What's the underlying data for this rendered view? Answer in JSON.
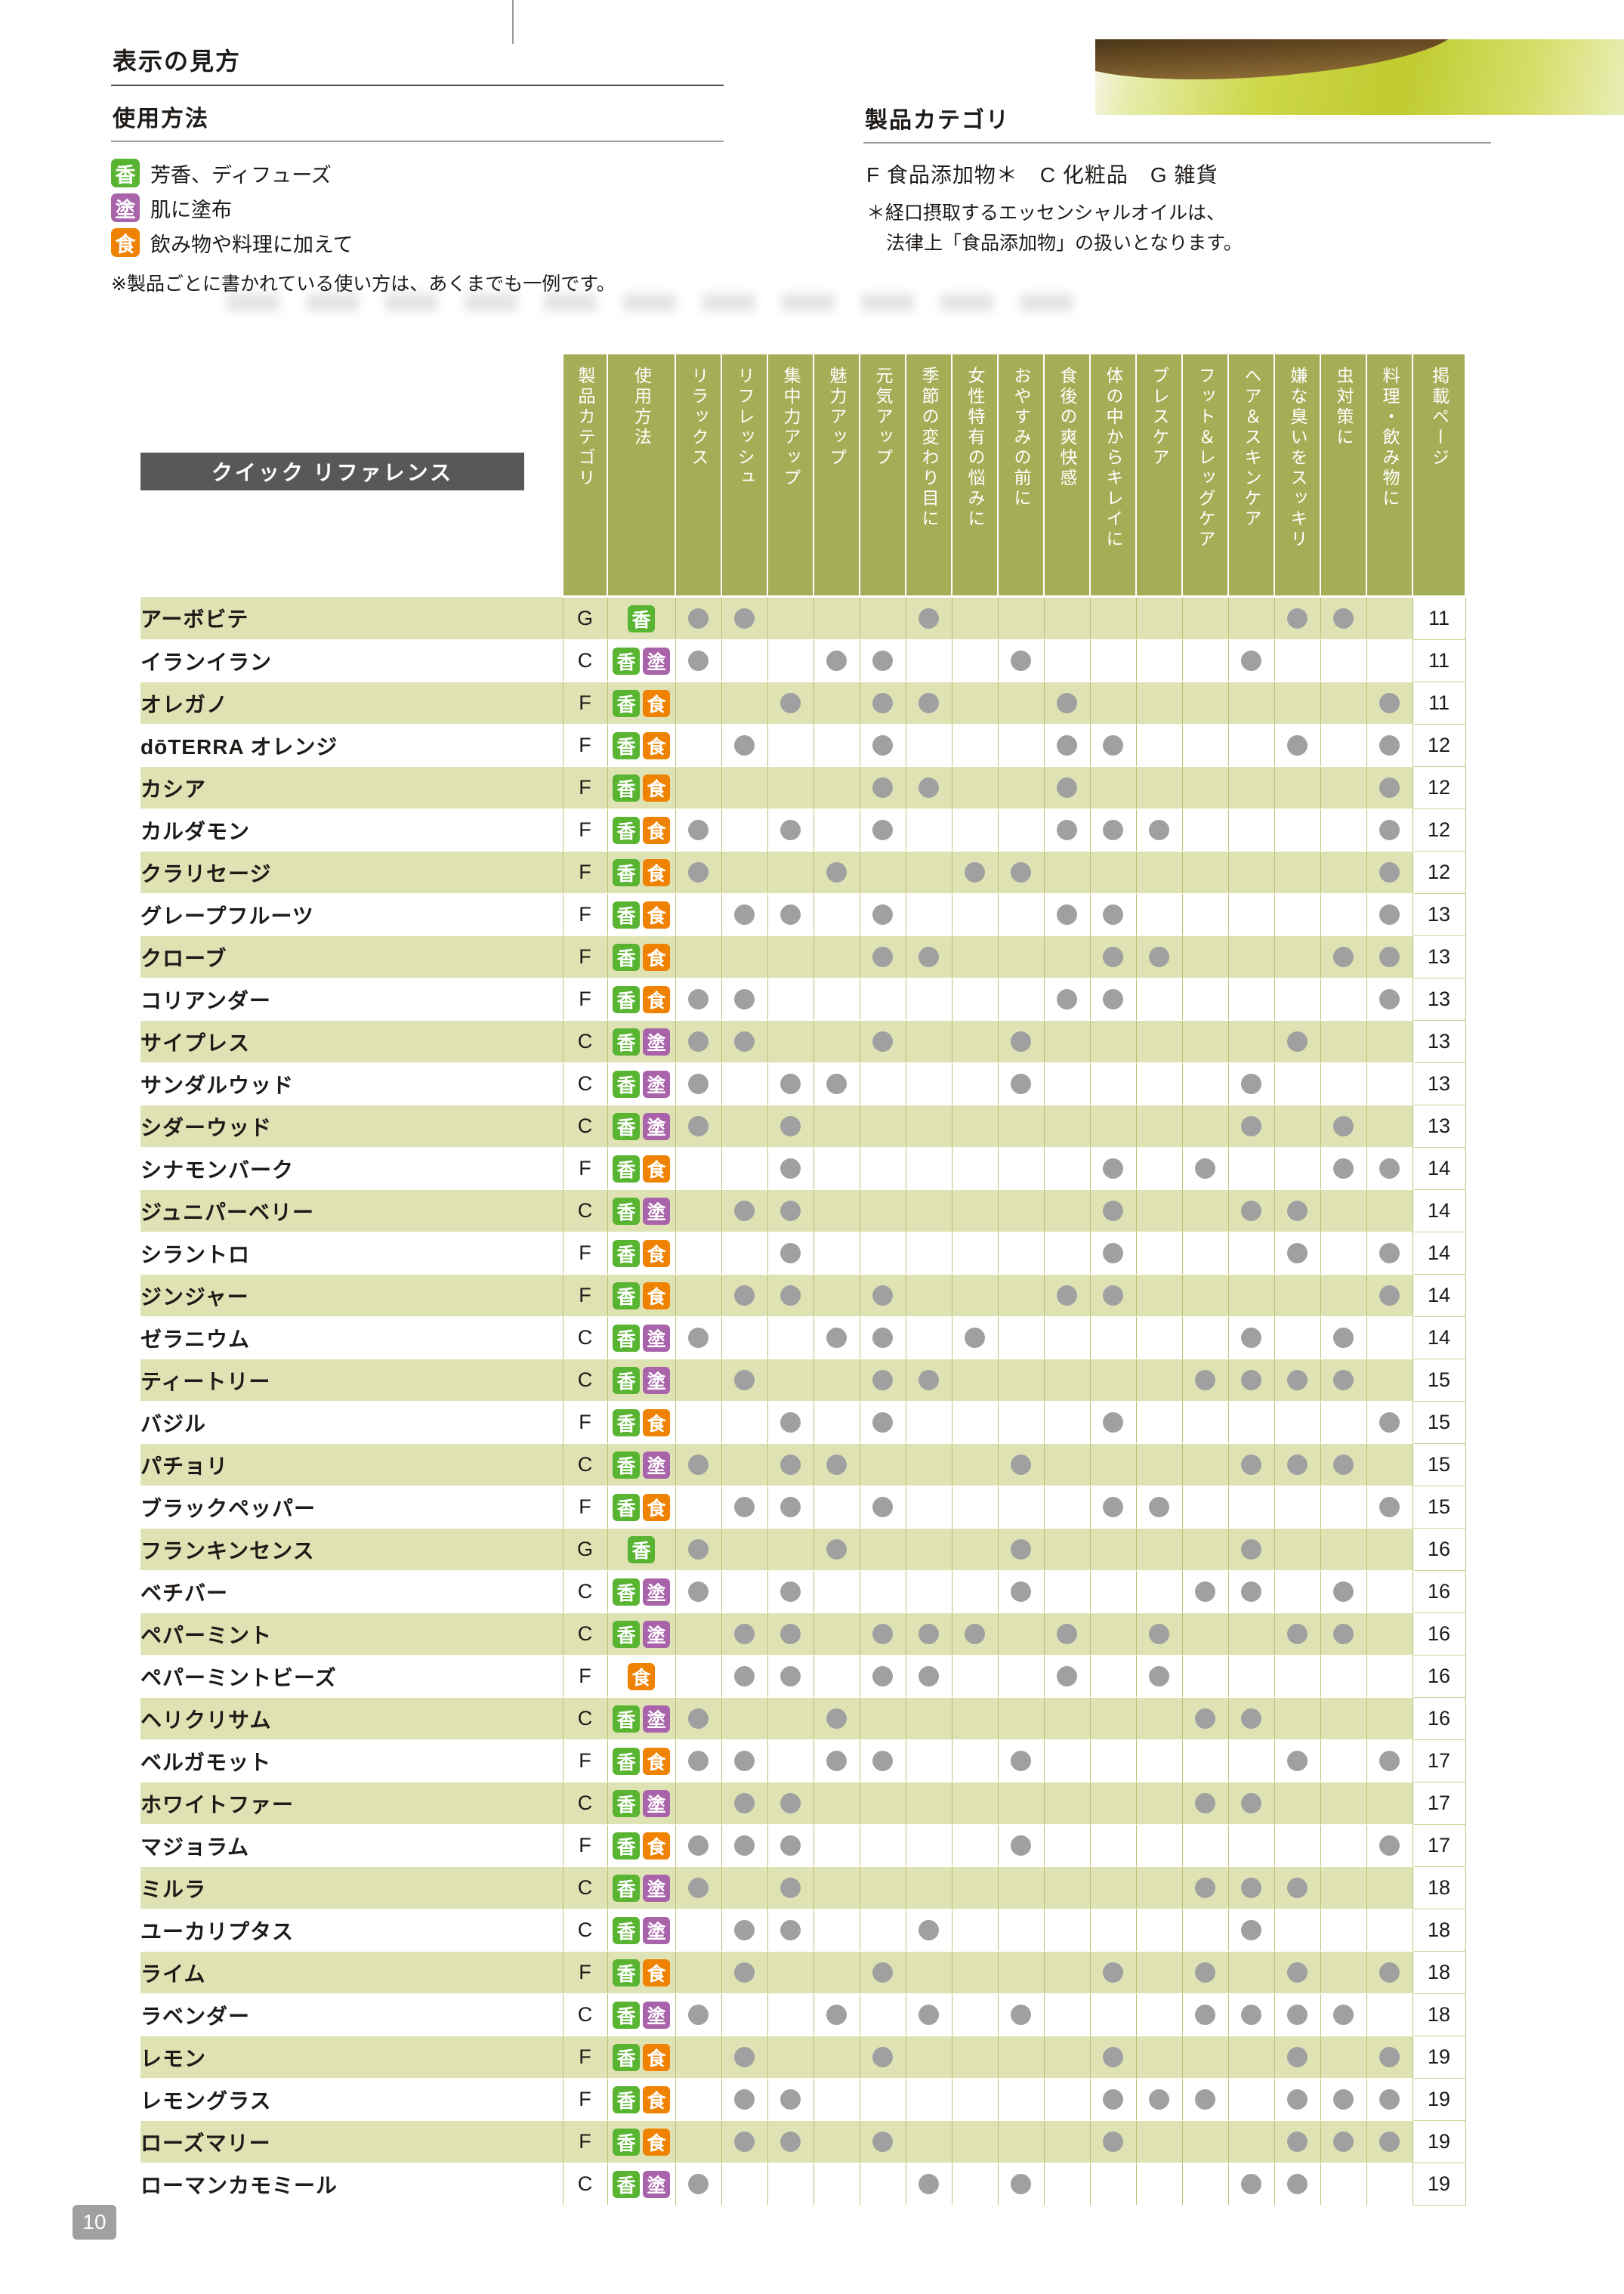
{
  "page": {
    "number": "10"
  },
  "header": {
    "section_title": "表示の見方"
  },
  "usage_legend": {
    "title": "使用方法",
    "items": [
      {
        "icon": "香",
        "label": "芳香、ディフューズ"
      },
      {
        "icon": "塗",
        "label": "肌に塗布"
      },
      {
        "icon": "食",
        "label": "飲み物や料理に加えて"
      }
    ],
    "note": "※製品ごとに書かれている使い方は、あくまでも一例です。"
  },
  "category_legend": {
    "title": "製品カテゴリ",
    "items_line": "F 食品添加物＊　C 化粧品　G 雑貨",
    "note_line1": "＊経口摂取するエッセンシャルオイルは、",
    "note_line2": "法律上「食品添加物」の扱いとなります。"
  },
  "table": {
    "title": "クイック リファレンス",
    "icon_colors": {
      "香": "#58b431",
      "塗": "#a963aa",
      "食": "#ef8200"
    },
    "dot_color": "#9fa0a0",
    "columns": {
      "category": "製品カテゴリ",
      "usage": "使用方法",
      "benefits": [
        "リラックス",
        "リフレッシュ",
        "集中力アップ",
        "魅力アップ",
        "元気アップ",
        "季節の変わり目に",
        "女性特有の悩みに",
        "おやすみの前に",
        "食後の爽快感",
        "体の中からキレイに",
        "ブレスケア",
        "フット＆レッグケア",
        "ヘア＆スキンケア",
        "嫌な臭いをスッキリ",
        "虫対策に",
        "料理・飲み物に"
      ],
      "page": "掲載ページ"
    },
    "rows": [
      {
        "name": "アーボビテ",
        "category": "G",
        "usage": [
          "香"
        ],
        "marks": [
          1,
          2,
          6,
          14,
          15
        ],
        "page": "11"
      },
      {
        "name": "イランイラン",
        "category": "C",
        "usage": [
          "香",
          "塗"
        ],
        "marks": [
          1,
          4,
          5,
          8,
          13
        ],
        "page": "11"
      },
      {
        "name": "オレガノ",
        "category": "F",
        "usage": [
          "香",
          "食"
        ],
        "marks": [
          3,
          5,
          6,
          9,
          16
        ],
        "page": "11"
      },
      {
        "name": "dōTERRA オレンジ",
        "category": "F",
        "usage": [
          "香",
          "食"
        ],
        "marks": [
          2,
          5,
          9,
          10,
          14,
          16
        ],
        "page": "12"
      },
      {
        "name": "カシア",
        "category": "F",
        "usage": [
          "香",
          "食"
        ],
        "marks": [
          5,
          6,
          9,
          16
        ],
        "page": "12"
      },
      {
        "name": "カルダモン",
        "category": "F",
        "usage": [
          "香",
          "食"
        ],
        "marks": [
          1,
          3,
          5,
          9,
          10,
          11,
          16
        ],
        "page": "12"
      },
      {
        "name": "クラリセージ",
        "category": "F",
        "usage": [
          "香",
          "食"
        ],
        "marks": [
          1,
          4,
          7,
          8,
          16
        ],
        "page": "12"
      },
      {
        "name": "グレープフルーツ",
        "category": "F",
        "usage": [
          "香",
          "食"
        ],
        "marks": [
          2,
          3,
          5,
          9,
          10,
          16
        ],
        "page": "13"
      },
      {
        "name": "クローブ",
        "category": "F",
        "usage": [
          "香",
          "食"
        ],
        "marks": [
          5,
          6,
          10,
          11,
          15,
          16
        ],
        "page": "13"
      },
      {
        "name": "コリアンダー",
        "category": "F",
        "usage": [
          "香",
          "食"
        ],
        "marks": [
          1,
          2,
          9,
          10,
          16
        ],
        "page": "13"
      },
      {
        "name": "サイプレス",
        "category": "C",
        "usage": [
          "香",
          "塗"
        ],
        "marks": [
          1,
          2,
          5,
          8,
          14
        ],
        "page": "13"
      },
      {
        "name": "サンダルウッド",
        "category": "C",
        "usage": [
          "香",
          "塗"
        ],
        "marks": [
          1,
          3,
          4,
          8,
          13
        ],
        "page": "13"
      },
      {
        "name": "シダーウッド",
        "category": "C",
        "usage": [
          "香",
          "塗"
        ],
        "marks": [
          1,
          3,
          13,
          15
        ],
        "page": "13"
      },
      {
        "name": "シナモンバーク",
        "category": "F",
        "usage": [
          "香",
          "食"
        ],
        "marks": [
          3,
          10,
          12,
          15,
          16
        ],
        "page": "14"
      },
      {
        "name": "ジュニパーベリー",
        "category": "C",
        "usage": [
          "香",
          "塗"
        ],
        "marks": [
          2,
          3,
          10,
          13,
          14
        ],
        "page": "14"
      },
      {
        "name": "シラントロ",
        "category": "F",
        "usage": [
          "香",
          "食"
        ],
        "marks": [
          3,
          10,
          14,
          16
        ],
        "page": "14"
      },
      {
        "name": "ジンジャー",
        "category": "F",
        "usage": [
          "香",
          "食"
        ],
        "marks": [
          2,
          3,
          5,
          9,
          10,
          16
        ],
        "page": "14"
      },
      {
        "name": "ゼラニウム",
        "category": "C",
        "usage": [
          "香",
          "塗"
        ],
        "marks": [
          1,
          4,
          5,
          7,
          13,
          15
        ],
        "page": "14"
      },
      {
        "name": "ティートリー",
        "category": "C",
        "usage": [
          "香",
          "塗"
        ],
        "marks": [
          2,
          5,
          6,
          12,
          13,
          14,
          15
        ],
        "page": "15"
      },
      {
        "name": "バジル",
        "category": "F",
        "usage": [
          "香",
          "食"
        ],
        "marks": [
          3,
          5,
          10,
          16
        ],
        "page": "15"
      },
      {
        "name": "パチョリ",
        "category": "C",
        "usage": [
          "香",
          "塗"
        ],
        "marks": [
          1,
          3,
          4,
          8,
          13,
          14,
          15
        ],
        "page": "15"
      },
      {
        "name": "ブラックペッパー",
        "category": "F",
        "usage": [
          "香",
          "食"
        ],
        "marks": [
          2,
          3,
          5,
          10,
          11,
          16
        ],
        "page": "15"
      },
      {
        "name": "フランキンセンス",
        "category": "G",
        "usage": [
          "香"
        ],
        "marks": [
          1,
          4,
          8,
          13
        ],
        "page": "16"
      },
      {
        "name": "ベチバー",
        "category": "C",
        "usage": [
          "香",
          "塗"
        ],
        "marks": [
          1,
          3,
          8,
          12,
          13,
          15
        ],
        "page": "16"
      },
      {
        "name": "ペパーミント",
        "category": "C",
        "usage": [
          "香",
          "塗"
        ],
        "marks": [
          2,
          3,
          5,
          6,
          7,
          9,
          11,
          14,
          15
        ],
        "page": "16"
      },
      {
        "name": "ペパーミントビーズ",
        "category": "F",
        "usage": [
          "食"
        ],
        "marks": [
          2,
          3,
          5,
          6,
          9,
          11
        ],
        "page": "16"
      },
      {
        "name": "ヘリクリサム",
        "category": "C",
        "usage": [
          "香",
          "塗"
        ],
        "marks": [
          1,
          4,
          12,
          13
        ],
        "page": "16"
      },
      {
        "name": "ベルガモット",
        "category": "F",
        "usage": [
          "香",
          "食"
        ],
        "marks": [
          1,
          2,
          4,
          5,
          8,
          14,
          16
        ],
        "page": "17"
      },
      {
        "name": "ホワイトファー",
        "category": "C",
        "usage": [
          "香",
          "塗"
        ],
        "marks": [
          2,
          3,
          12,
          13
        ],
        "page": "17"
      },
      {
        "name": "マジョラム",
        "category": "F",
        "usage": [
          "香",
          "食"
        ],
        "marks": [
          1,
          2,
          3,
          8,
          16
        ],
        "page": "17"
      },
      {
        "name": "ミルラ",
        "category": "C",
        "usage": [
          "香",
          "塗"
        ],
        "marks": [
          1,
          3,
          12,
          13,
          14
        ],
        "page": "18"
      },
      {
        "name": "ユーカリプタス",
        "category": "C",
        "usage": [
          "香",
          "塗"
        ],
        "marks": [
          2,
          3,
          6,
          13
        ],
        "page": "18"
      },
      {
        "name": "ライム",
        "category": "F",
        "usage": [
          "香",
          "食"
        ],
        "marks": [
          2,
          5,
          10,
          12,
          14,
          16
        ],
        "page": "18"
      },
      {
        "name": "ラベンダー",
        "category": "C",
        "usage": [
          "香",
          "塗"
        ],
        "marks": [
          1,
          4,
          6,
          8,
          12,
          13,
          14,
          15
        ],
        "page": "18"
      },
      {
        "name": "レモン",
        "category": "F",
        "usage": [
          "香",
          "食"
        ],
        "marks": [
          2,
          5,
          10,
          14,
          16
        ],
        "page": "19"
      },
      {
        "name": "レモングラス",
        "category": "F",
        "usage": [
          "香",
          "食"
        ],
        "marks": [
          2,
          3,
          10,
          11,
          12,
          14,
          15,
          16
        ],
        "page": "19"
      },
      {
        "name": "ローズマリー",
        "category": "F",
        "usage": [
          "香",
          "食"
        ],
        "marks": [
          2,
          3,
          5,
          10,
          14,
          15,
          16
        ],
        "page": "19"
      },
      {
        "name": "ローマンカモミール",
        "category": "C",
        "usage": [
          "香",
          "塗"
        ],
        "marks": [
          1,
          6,
          8,
          13,
          14
        ],
        "page": "19"
      }
    ]
  }
}
